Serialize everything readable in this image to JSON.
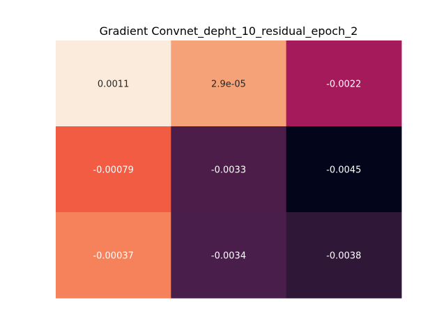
{
  "chart_data": {
    "type": "heatmap",
    "title": "Gradient Convnet_depht_10_residual_epoch_2",
    "xlabel": "",
    "ylabel": "",
    "grid": false,
    "colorbar": false,
    "colormap": "rocket",
    "rows": 3,
    "cols": 3,
    "values": [
      [
        0.0011,
        2.9e-05,
        -0.0022
      ],
      [
        -0.00079,
        -0.0033,
        -0.0045
      ],
      [
        -0.00037,
        -0.0034,
        -0.0038
      ]
    ],
    "labels": [
      [
        "0.0011",
        "2.9e-05",
        "-0.0022"
      ],
      [
        "-0.00079",
        "-0.0033",
        "-0.0045"
      ],
      [
        "-0.00037",
        "-0.0034",
        "-0.0038"
      ]
    ],
    "colors": [
      [
        "#fbebdd",
        "#f6a278",
        "#a41a5b"
      ],
      [
        "#f15c43",
        "#4c1d48",
        "#03051a"
      ],
      [
        "#f5825b",
        "#4a1e4a",
        "#2f1738"
      ]
    ],
    "label_colors": [
      [
        "#262626",
        "#262626",
        "#ffffff"
      ],
      [
        "#ffffff",
        "#ffffff",
        "#ffffff"
      ],
      [
        "#ffffff",
        "#ffffff",
        "#ffffff"
      ]
    ]
  }
}
